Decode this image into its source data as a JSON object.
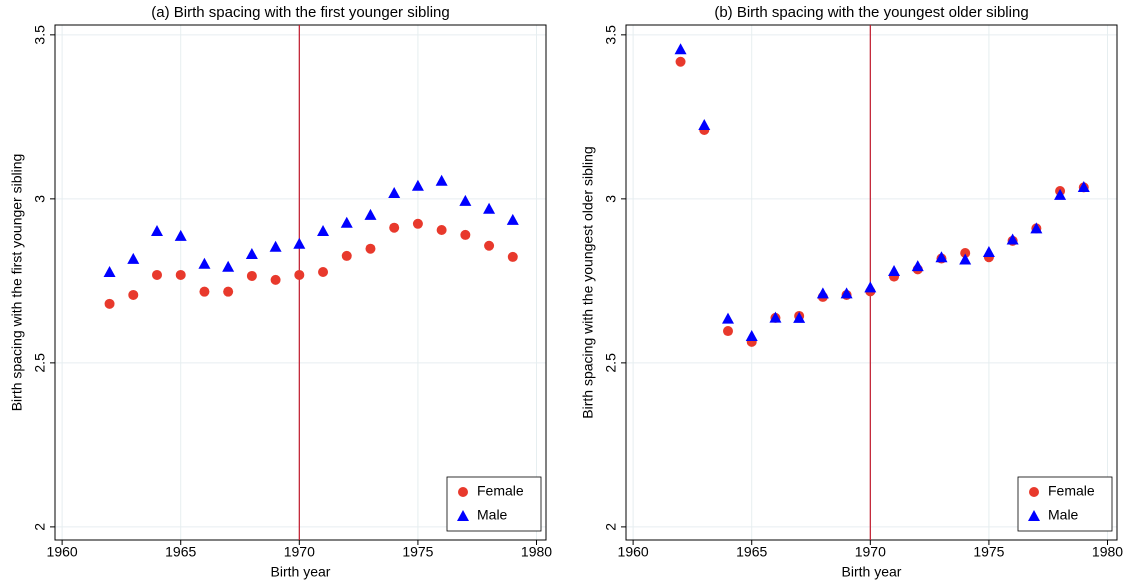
{
  "chart_data": [
    {
      "type": "scatter",
      "title": "(a) Birth spacing with the first younger sibling",
      "xlabel": "Birth year",
      "ylabel": "Birth spacing with the first younger sibling",
      "x": [
        1962,
        1963,
        1964,
        1965,
        1966,
        1967,
        1968,
        1969,
        1970,
        1971,
        1972,
        1973,
        1974,
        1975,
        1976,
        1977,
        1978,
        1979
      ],
      "series": [
        {
          "name": "Female",
          "color": "#e8392c",
          "marker": "circle",
          "values": [
            2.68,
            2.707,
            2.768,
            2.768,
            2.717,
            2.717,
            2.765,
            2.753,
            2.768,
            2.777,
            2.826,
            2.848,
            2.912,
            2.924,
            2.905,
            2.89,
            2.857,
            2.823
          ]
        },
        {
          "name": "Male",
          "color": "#0000ff",
          "marker": "triangle",
          "values": [
            2.777,
            2.817,
            2.902,
            2.887,
            2.802,
            2.793,
            2.832,
            2.854,
            2.863,
            2.902,
            2.927,
            2.951,
            3.018,
            3.04,
            3.055,
            2.994,
            2.97,
            2.936
          ]
        }
      ],
      "xlim": [
        1959.7,
        1980.4
      ],
      "xticks": [
        1960,
        1965,
        1970,
        1975,
        1980
      ],
      "ylim": [
        1.96,
        3.53
      ],
      "yticks": [
        2,
        2.5,
        3,
        3.5
      ],
      "vline": 1970,
      "vline_color": "#c0182a",
      "grid": true,
      "legend": "lower right"
    },
    {
      "type": "scatter",
      "title": "(b) Birth spacing with the youngest older sibling",
      "xlabel": "Birth year",
      "ylabel": "Birth spacing with the youngest older sibling",
      "x": [
        1962,
        1963,
        1964,
        1965,
        1966,
        1967,
        1968,
        1969,
        1970,
        1971,
        1972,
        1973,
        1974,
        1975,
        1976,
        1977,
        1978,
        1979
      ],
      "series": [
        {
          "name": "Female",
          "color": "#e8392c",
          "marker": "circle",
          "values": [
            3.418,
            3.21,
            2.597,
            2.564,
            2.637,
            2.643,
            2.701,
            2.707,
            2.718,
            2.763,
            2.785,
            2.818,
            2.835,
            2.822,
            2.872,
            2.91,
            3.024,
            3.035
          ]
        },
        {
          "name": "Male",
          "color": "#0000ff",
          "marker": "triangle",
          "values": [
            3.456,
            3.225,
            2.635,
            2.582,
            2.638,
            2.637,
            2.712,
            2.712,
            2.73,
            2.78,
            2.795,
            2.822,
            2.815,
            2.838,
            2.876,
            2.91,
            3.012,
            3.036
          ]
        }
      ],
      "xlim": [
        1959.7,
        1980.4
      ],
      "xticks": [
        1960,
        1965,
        1970,
        1975,
        1980
      ],
      "ylim": [
        1.96,
        3.53
      ],
      "yticks": [
        2,
        2.5,
        3,
        3.5
      ],
      "vline": 1970,
      "vline_color": "#c0182a",
      "grid": true,
      "legend": "lower right"
    }
  ]
}
